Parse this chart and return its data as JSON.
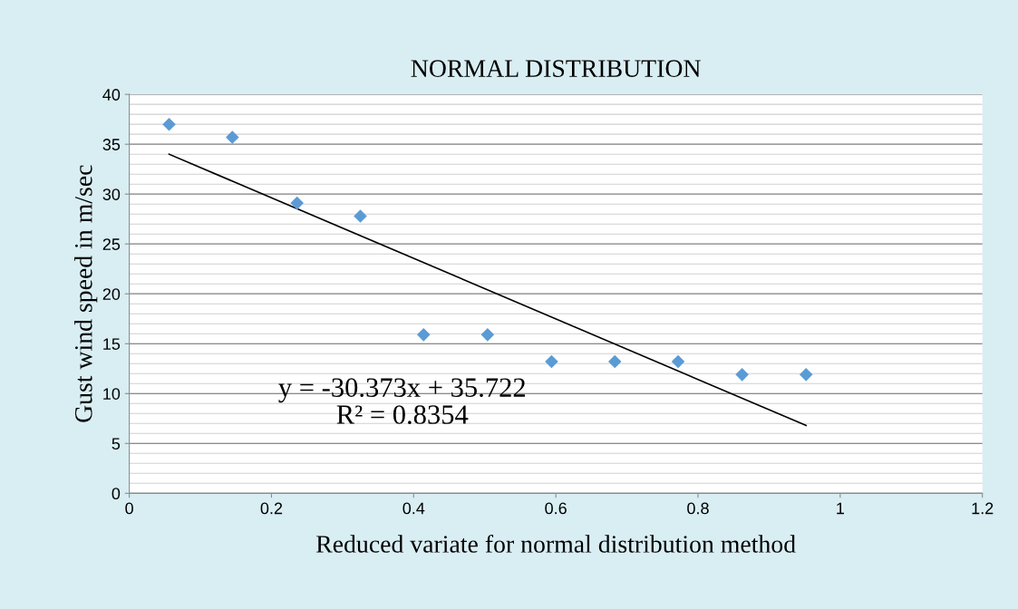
{
  "chart_data": {
    "type": "scatter",
    "title": "NORMAL DISTRIBUTION",
    "xlabel": "Reduced variate for normal distribution method",
    "ylabel": "Gust wind speed in m/sec",
    "series": [
      {
        "color": "#5b9bd5",
        "marker": "diamond",
        "x": [
          0.056,
          0.145,
          0.236,
          0.325,
          0.414,
          0.504,
          0.594,
          0.683,
          0.772,
          0.862,
          0.952
        ],
        "values": [
          37.0,
          35.7,
          29.1,
          27.8,
          15.9,
          15.9,
          13.2,
          13.2,
          13.2,
          11.9,
          11.9
        ]
      },
      {
        "type": "line",
        "color": "#000000",
        "x": [
          0.056,
          0.952
        ],
        "values": [
          34.0,
          6.8
        ]
      }
    ],
    "annotations": [
      "y = -30.373x + 35.722\nR² = 0.8354"
    ],
    "xlim": [
      0,
      1.2
    ],
    "xticks": [
      0,
      0.2,
      0.4,
      0.6,
      0.8,
      1,
      1.2
    ],
    "ylim": [
      0,
      40
    ],
    "yticks": [
      0,
      5,
      10,
      15,
      20,
      25,
      30,
      35,
      40
    ],
    "grid": "y"
  }
}
